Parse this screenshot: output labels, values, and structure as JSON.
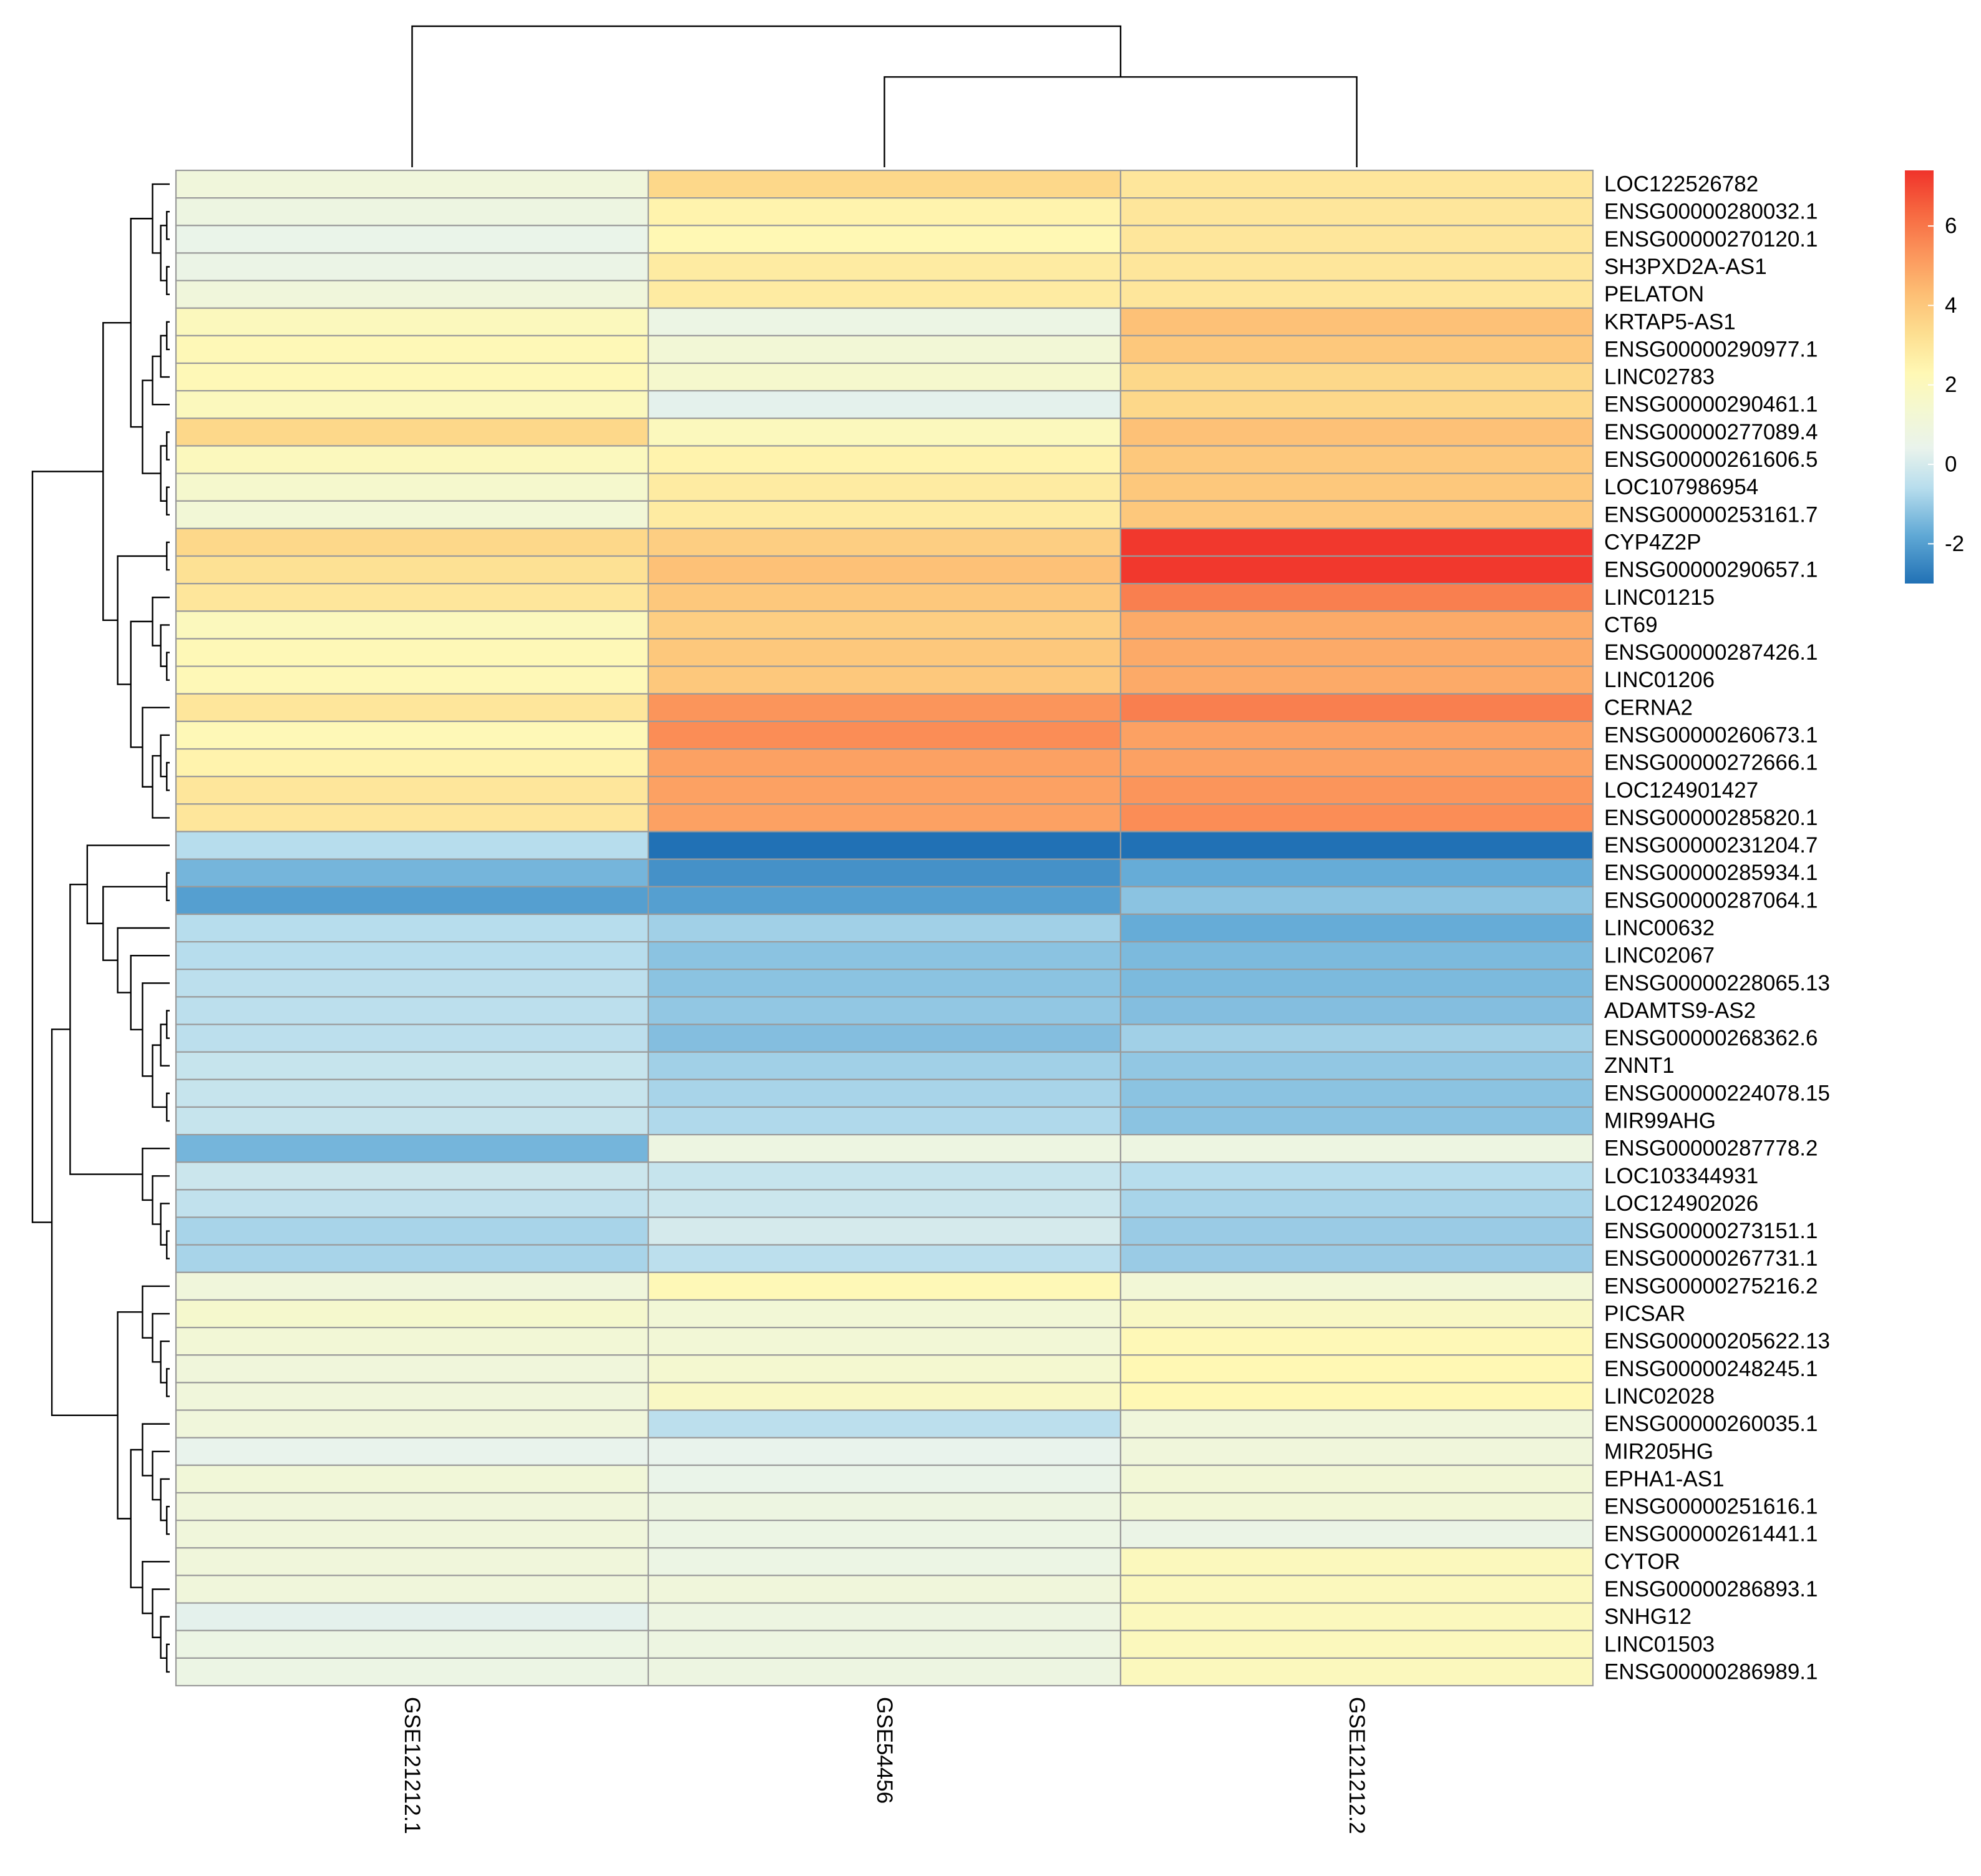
{
  "chart_data": {
    "type": "heatmap",
    "title": "",
    "columns": [
      "GSE121212.1",
      "GSE54456",
      "GSE121212.2"
    ],
    "rows": [
      "LOC122526782",
      "ENSG00000280032.1",
      "ENSG00000270120.1",
      "SH3PXD2A-AS1",
      "PELATON",
      "KRTAP5-AS1",
      "ENSG00000290977.1",
      "LINC02783",
      "ENSG00000290461.1",
      "ENSG00000277089.4",
      "ENSG00000261606.5",
      "LOC107986954",
      "ENSG00000253161.7",
      "CYP4Z2P",
      "ENSG00000290657.1",
      "LINC01215",
      "CT69",
      "ENSG00000287426.1",
      "LINC01206",
      "CERNA2",
      "ENSG00000260673.1",
      "ENSG00000272666.1",
      "LOC124901427",
      "ENSG00000285820.1",
      "ENSG00000231204.7",
      "ENSG00000285934.1",
      "ENSG00000287064.1",
      "LINC00632",
      "LINC02067",
      "ENSG00000228065.13",
      "ADAMTS9-AS2",
      "ENSG00000268362.6",
      "ZNNT1",
      "ENSG00000224078.15",
      "MIR99AHG",
      "ENSG00000287778.2",
      "LOC103344931",
      "LOC124902026",
      "ENSG00000273151.1",
      "ENSG00000267731.1",
      "ENSG00000275216.2",
      "PICSAR",
      "ENSG00000205622.13",
      "ENSG00000248245.1",
      "LINC02028",
      "ENSG00000260035.1",
      "MIR205HG",
      "EPHA1-AS1",
      "ENSG00000251616.1",
      "ENSG00000261441.1",
      "CYTOR",
      "ENSG00000286893.1",
      "SNHG12",
      "LINC01503",
      "ENSG00000286989.1"
    ],
    "values": [
      [
        1.0,
        3.5,
        3.0
      ],
      [
        0.8,
        2.5,
        3.0
      ],
      [
        0.5,
        2.3,
        3.0
      ],
      [
        0.6,
        2.8,
        3.0
      ],
      [
        1.0,
        2.8,
        3.0
      ],
      [
        2.0,
        0.7,
        4.2
      ],
      [
        2.2,
        1.2,
        4.0
      ],
      [
        2.2,
        1.5,
        3.5
      ],
      [
        2.0,
        0.3,
        3.5
      ],
      [
        3.5,
        2.0,
        4.2
      ],
      [
        2.0,
        2.5,
        4.0
      ],
      [
        1.5,
        2.8,
        4.0
      ],
      [
        1.2,
        2.8,
        4.0
      ],
      [
        3.5,
        3.8,
        7.3
      ],
      [
        3.2,
        4.2,
        7.3
      ],
      [
        3.0,
        4.0,
        5.8
      ],
      [
        2.0,
        3.8,
        4.8
      ],
      [
        2.2,
        4.0,
        4.8
      ],
      [
        2.2,
        4.0,
        4.8
      ],
      [
        3.0,
        5.3,
        5.8
      ],
      [
        2.2,
        5.5,
        5.0
      ],
      [
        2.5,
        5.0,
        5.0
      ],
      [
        3.0,
        5.0,
        5.3
      ],
      [
        3.0,
        5.0,
        5.5
      ],
      [
        -0.6,
        -3.0,
        -3.0
      ],
      [
        -1.5,
        -2.3,
        -1.7
      ],
      [
        -2.0,
        -2.0,
        -1.2
      ],
      [
        -0.6,
        -0.9,
        -1.7
      ],
      [
        -0.6,
        -1.2,
        -1.4
      ],
      [
        -0.5,
        -1.2,
        -1.4
      ],
      [
        -0.5,
        -1.1,
        -1.3
      ],
      [
        -0.5,
        -1.3,
        -0.9
      ],
      [
        -0.3,
        -0.9,
        -1.1
      ],
      [
        -0.3,
        -0.8,
        -1.2
      ],
      [
        -0.3,
        -0.7,
        -1.2
      ],
      [
        -1.5,
        0.8,
        0.8
      ],
      [
        -0.2,
        -0.3,
        -0.6
      ],
      [
        -0.4,
        -0.2,
        -0.8
      ],
      [
        -0.8,
        0.0,
        -1.0
      ],
      [
        -0.8,
        -0.5,
        -1.0
      ],
      [
        1.0,
        2.2,
        1.2
      ],
      [
        1.5,
        1.2,
        1.8
      ],
      [
        1.2,
        1.2,
        2.2
      ],
      [
        1.0,
        1.4,
        2.3
      ],
      [
        1.0,
        1.8,
        2.3
      ],
      [
        1.0,
        -0.5,
        1.0
      ],
      [
        0.4,
        0.4,
        1.0
      ],
      [
        1.1,
        0.5,
        1.2
      ],
      [
        1.0,
        0.8,
        1.2
      ],
      [
        1.0,
        0.7,
        0.6
      ],
      [
        1.0,
        0.7,
        2.0
      ],
      [
        1.0,
        1.0,
        2.0
      ],
      [
        0.3,
        0.8,
        2.0
      ],
      [
        0.7,
        0.8,
        2.0
      ],
      [
        0.7,
        0.8,
        2.0
      ]
    ],
    "colorbar": {
      "range": [
        -3.0,
        7.4
      ],
      "ticks": [
        -2,
        0,
        2,
        4,
        6
      ],
      "tick_labels": [
        "-2",
        "0",
        "2",
        "4",
        "6"
      ],
      "stops": [
        {
          "value": -3.0,
          "color": "#2171b5"
        },
        {
          "value": -1.8,
          "color": "#5fa8d5"
        },
        {
          "value": -0.6,
          "color": "#b7dded"
        },
        {
          "value": 0.4,
          "color": "#e9f3ec"
        },
        {
          "value": 1.4,
          "color": "#f4f8d0"
        },
        {
          "value": 2.3,
          "color": "#fff8b4"
        },
        {
          "value": 3.3,
          "color": "#fdde90"
        },
        {
          "value": 4.3,
          "color": "#fdbe74"
        },
        {
          "value": 5.4,
          "color": "#fb9159"
        },
        {
          "value": 6.4,
          "color": "#f6653f"
        },
        {
          "value": 7.4,
          "color": "#f0332b"
        }
      ]
    },
    "row_dendrogram": [
      [
        3,
        4
      ],
      [
        1,
        2
      ],
      [
        56,
        55
      ],
      [
        0,
        57
      ],
      [
        9,
        10
      ],
      [
        11,
        12
      ],
      [
        59,
        60
      ],
      [
        5,
        6
      ],
      [
        62,
        7
      ],
      [
        63,
        8
      ],
      [
        64,
        61
      ],
      [
        58,
        65
      ],
      [
        13,
        14
      ],
      [
        17,
        18
      ],
      [
        16,
        68
      ],
      [
        15,
        69
      ],
      [
        21,
        22
      ],
      [
        20,
        71
      ],
      [
        72,
        23
      ],
      [
        19,
        73
      ],
      [
        70,
        74
      ],
      [
        67,
        75
      ],
      [
        66,
        76
      ],
      [
        30,
        31
      ],
      [
        78,
        32
      ],
      [
        33,
        34
      ],
      [
        79,
        80
      ],
      [
        29,
        81
      ],
      [
        28,
        82
      ],
      [
        27,
        83
      ],
      [
        25,
        26
      ],
      [
        85,
        84
      ],
      [
        24,
        86
      ],
      [
        38,
        39
      ],
      [
        37,
        88
      ],
      [
        36,
        89
      ],
      [
        35,
        90
      ],
      [
        87,
        91
      ],
      [
        43,
        44
      ],
      [
        42,
        93
      ],
      [
        41,
        94
      ],
      [
        40,
        95
      ],
      [
        48,
        49
      ],
      [
        47,
        97
      ],
      [
        46,
        98
      ],
      [
        45,
        99
      ],
      [
        53,
        54
      ],
      [
        52,
        101
      ],
      [
        51,
        102
      ],
      [
        50,
        103
      ],
      [
        100,
        104
      ],
      [
        96,
        105
      ],
      [
        92,
        106
      ],
      [
        77,
        107
      ]
    ],
    "column_dendrogram": [
      [
        1,
        2
      ],
      [
        0,
        3
      ]
    ]
  }
}
